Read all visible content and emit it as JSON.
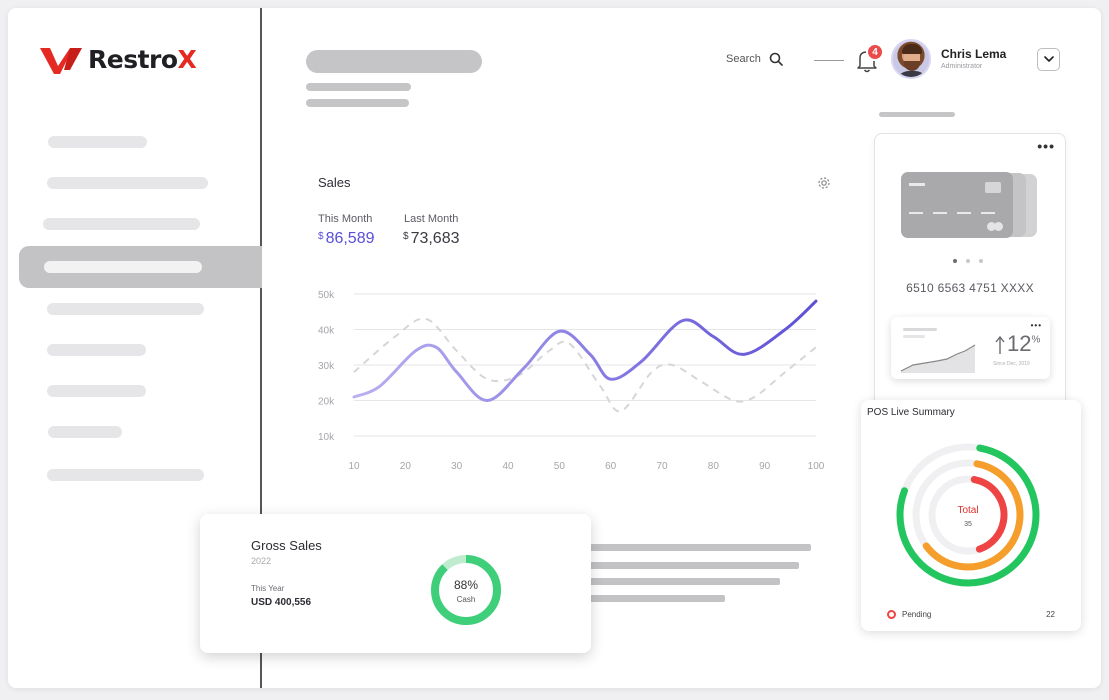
{
  "brand": {
    "name": "Restro",
    "name_accent": "X"
  },
  "header": {
    "search_label": "Search",
    "notification_count": "4",
    "user": {
      "name": "Chris Lema",
      "role": "Administrator"
    }
  },
  "sales": {
    "title": "Sales",
    "this_month_label": "This Month",
    "this_month_currency": "$",
    "this_month_value": "86,589",
    "last_month_label": "Last Month",
    "last_month_currency": "$",
    "last_month_value": "73,683"
  },
  "chart_data": {
    "type": "line",
    "x": [
      10,
      20,
      30,
      40,
      50,
      60,
      70,
      80,
      90,
      100
    ],
    "x_tick_labels": [
      "10",
      "20",
      "30",
      "40",
      "50",
      "60",
      "70",
      "80",
      "90",
      "100"
    ],
    "y_tick_labels": [
      "50k",
      "40k",
      "30k",
      "20k",
      "10k"
    ],
    "y_ticks": [
      50,
      40,
      30,
      20,
      10
    ],
    "ylim": [
      10,
      50
    ],
    "xlim": [
      10,
      100
    ],
    "grid": true,
    "series": [
      {
        "style": "solid-gradient-purple",
        "points": [
          [
            10,
            21
          ],
          [
            15,
            24
          ],
          [
            22,
            34
          ],
          [
            26,
            35
          ],
          [
            30,
            28
          ],
          [
            36,
            20
          ],
          [
            43,
            29
          ],
          [
            50,
            39.5
          ],
          [
            56,
            33
          ],
          [
            60,
            26
          ],
          [
            66,
            31
          ],
          [
            74,
            42.5
          ],
          [
            80,
            38
          ],
          [
            86,
            33
          ],
          [
            94,
            40
          ],
          [
            100,
            48
          ]
        ]
      },
      {
        "style": "dashed-gray",
        "points": [
          [
            10,
            28
          ],
          [
            18,
            38
          ],
          [
            24,
            43
          ],
          [
            30,
            34
          ],
          [
            36,
            26
          ],
          [
            42,
            27
          ],
          [
            48,
            34
          ],
          [
            52,
            36
          ],
          [
            58,
            24
          ],
          [
            62,
            17
          ],
          [
            68,
            28
          ],
          [
            72,
            30
          ],
          [
            78,
            25
          ],
          [
            84,
            20
          ],
          [
            88,
            21
          ],
          [
            94,
            28
          ],
          [
            100,
            35
          ]
        ]
      }
    ],
    "colors": {
      "primary_start": "#b8b0f0",
      "primary_end": "#5d4fd6",
      "secondary": "#d6d6da"
    }
  },
  "gross_sales": {
    "title": "Gross Sales",
    "year": "2022",
    "period_label": "This Year",
    "amount": "USD 400,556",
    "donut_percent_label": "88%",
    "donut_percent": 88,
    "donut_caption": "Cash",
    "donut_color": "#3fcf7a"
  },
  "card_panel": {
    "card_number": "6510 6563 4751 XXXX",
    "growth_value": "12",
    "growth_unit": "%",
    "growth_note": "Since Dec, 2019"
  },
  "pos_summary": {
    "title": "POS Live Summary",
    "center_label": "Total",
    "center_value": "35",
    "rings": [
      {
        "color": "#22c55e",
        "fraction": 0.78
      },
      {
        "color": "#f59e2b",
        "fraction": 0.62
      },
      {
        "color": "#ef4444",
        "fraction": 0.42
      }
    ],
    "legend": [
      {
        "label": "Pending",
        "value": "22",
        "color": "#ef4444"
      }
    ]
  }
}
